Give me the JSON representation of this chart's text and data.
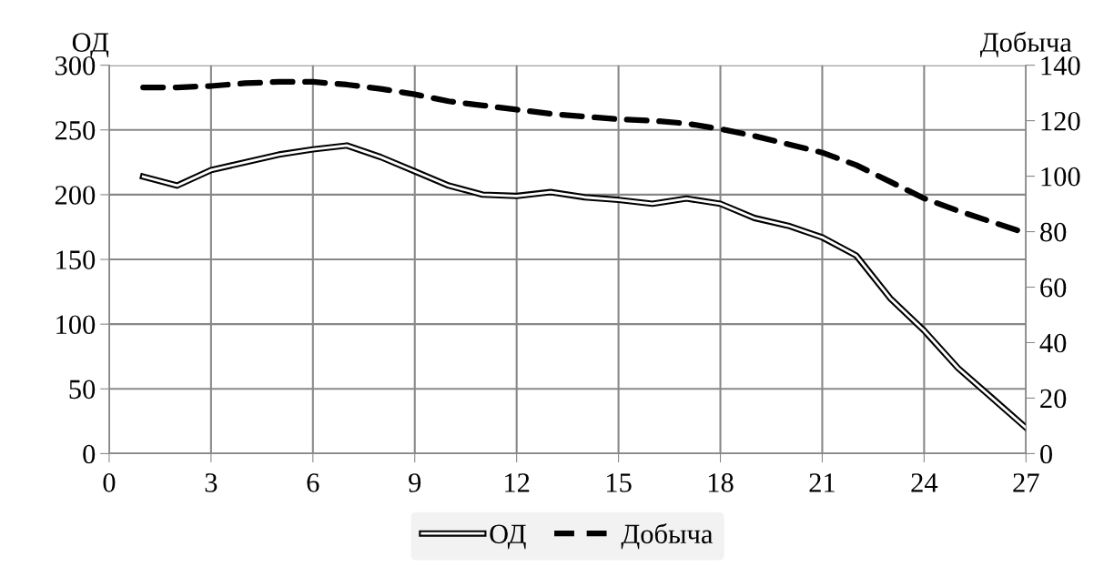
{
  "chart_data": {
    "type": "line",
    "ylabel": "ОД",
    "y2label": "Добыча",
    "x": [
      1,
      2,
      3,
      4,
      5,
      6,
      7,
      8,
      9,
      10,
      11,
      12,
      13,
      14,
      15,
      16,
      17,
      18,
      19,
      20,
      21,
      22,
      23,
      24,
      25,
      26,
      27
    ],
    "series": [
      {
        "name": "ОД",
        "color": "#000000",
        "line_style": "solid",
        "values": [
          214,
          207,
          219,
          225,
          231,
          235,
          238,
          229,
          218,
          207,
          200,
          199,
          202,
          198,
          196,
          193,
          197,
          193,
          182,
          176,
          167,
          153,
          120,
          95,
          66,
          43,
          20
        ]
      },
      {
        "name": "Добыча",
        "color": "#000000",
        "line_style": "dashed",
        "axis": "y2",
        "values": [
          132,
          132,
          132.5,
          133.5,
          134,
          134,
          133,
          131.5,
          129.5,
          127,
          125.5,
          124,
          122.5,
          121.5,
          120.5,
          120,
          119,
          117,
          114.5,
          111.5,
          108.5,
          104,
          98,
          92,
          87.5,
          83.5,
          79.5
        ]
      }
    ],
    "xlim": [
      0,
      27
    ],
    "xticks": [
      0,
      3,
      6,
      9,
      12,
      15,
      18,
      21,
      24,
      27
    ],
    "ylim": [
      0,
      300
    ],
    "yticks": [
      0,
      50,
      100,
      150,
      200,
      250,
      300
    ],
    "y2lim": [
      0,
      140
    ],
    "y2ticks": [
      0,
      20,
      40,
      60,
      80,
      100,
      120,
      140
    ],
    "grid": true,
    "legend": "bottom",
    "marker": "none"
  }
}
